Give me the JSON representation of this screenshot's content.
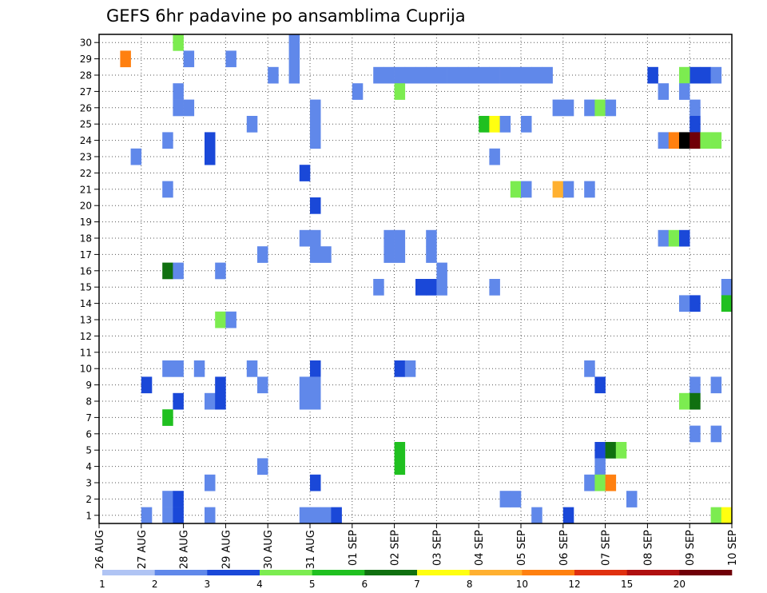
{
  "chart_data": {
    "type": "heatmap",
    "title": "GEFS 6hr padavine po ansamblima Cuprija",
    "xlabel": "",
    "ylabel": "",
    "x_ticks": [
      "26 AUG",
      "27 AUG",
      "28 AUG",
      "29 AUG",
      "30 AUG",
      "31 AUG",
      "01 SEP",
      "02 SEP",
      "03 SEP",
      "04 SEP",
      "05 SEP",
      "06 SEP",
      "07 SEP",
      "08 SEP",
      "09 SEP",
      "10 SEP"
    ],
    "y_ticks": [
      1,
      2,
      3,
      4,
      5,
      6,
      7,
      8,
      9,
      10,
      11,
      12,
      13,
      14,
      15,
      16,
      17,
      18,
      19,
      20,
      21,
      22,
      23,
      24,
      25,
      26,
      27,
      28,
      29,
      30
    ],
    "x_range": [
      0,
      60
    ],
    "y_range": [
      0.5,
      30.5
    ],
    "grid": true,
    "colorbar": {
      "levels": [
        "1",
        "2",
        "3",
        "4",
        "5",
        "6",
        "7",
        "8",
        "10",
        "12",
        "15",
        "20"
      ],
      "colors": [
        "#b0c4f4",
        "#6088ea",
        "#1a48d8",
        "#7cec50",
        "#20c020",
        "#107010",
        "#ffff10",
        "#ffb030",
        "#ff8010",
        "#e03010",
        "#b01010",
        "#700008"
      ]
    },
    "cells": [
      [
        7,
        30,
        3
      ],
      [
        2,
        29,
        8
      ],
      [
        8,
        29,
        1
      ],
      [
        12,
        29,
        1
      ],
      [
        18,
        30,
        1
      ],
      [
        18,
        29,
        1
      ],
      [
        18,
        28,
        1
      ],
      [
        16,
        28,
        1
      ],
      [
        27,
        28,
        1
      ],
      [
        26,
        28,
        1
      ],
      [
        28,
        28,
        1
      ],
      [
        36,
        28,
        1
      ],
      [
        35,
        28,
        1
      ],
      [
        33,
        28,
        1
      ],
      [
        31,
        28,
        1
      ],
      [
        29,
        28,
        1
      ],
      [
        30,
        28,
        1
      ],
      [
        42,
        28,
        1
      ],
      [
        41,
        28,
        1
      ],
      [
        40,
        28,
        1
      ],
      [
        39,
        28,
        1
      ],
      [
        38,
        28,
        1
      ],
      [
        37,
        28,
        1
      ],
      [
        34,
        28,
        1
      ],
      [
        32,
        28,
        1
      ],
      [
        52,
        28,
        2
      ],
      [
        56,
        28,
        2
      ],
      [
        55,
        28,
        3
      ],
      [
        57,
        28,
        2
      ],
      [
        58,
        28,
        1
      ],
      [
        7,
        27,
        1
      ],
      [
        24,
        27,
        1
      ],
      [
        28,
        27,
        3
      ],
      [
        53,
        27,
        1
      ],
      [
        55,
        27,
        1
      ],
      [
        7,
        26,
        1
      ],
      [
        8,
        26,
        1
      ],
      [
        20,
        26,
        1
      ],
      [
        43,
        26,
        1
      ],
      [
        44,
        26,
        1
      ],
      [
        46,
        26,
        1
      ],
      [
        47,
        26,
        3
      ],
      [
        48,
        26,
        1
      ],
      [
        56,
        26,
        1
      ],
      [
        14,
        25,
        1
      ],
      [
        20,
        25,
        1
      ],
      [
        36,
        25,
        4
      ],
      [
        37,
        25,
        6
      ],
      [
        38,
        25,
        1
      ],
      [
        40,
        25,
        1
      ],
      [
        56,
        25,
        2
      ],
      [
        6,
        24,
        1
      ],
      [
        10,
        24,
        2
      ],
      [
        20,
        24,
        1
      ],
      [
        53,
        24,
        1
      ],
      [
        54,
        24,
        8
      ],
      [
        55,
        24,
        12
      ],
      [
        56,
        24,
        11
      ],
      [
        57,
        24,
        3
      ],
      [
        58,
        24,
        3
      ],
      [
        3,
        23,
        1
      ],
      [
        10,
        23,
        2
      ],
      [
        37,
        23,
        1
      ],
      [
        19,
        22,
        2
      ],
      [
        6,
        21,
        1
      ],
      [
        39,
        21,
        3
      ],
      [
        40,
        21,
        1
      ],
      [
        43,
        21,
        7
      ],
      [
        44,
        21,
        1
      ],
      [
        46,
        21,
        1
      ],
      [
        20,
        20,
        2
      ],
      [
        19,
        18,
        1
      ],
      [
        20,
        18,
        1
      ],
      [
        27,
        18,
        1
      ],
      [
        28,
        18,
        1
      ],
      [
        31,
        18,
        1
      ],
      [
        53,
        18,
        1
      ],
      [
        54,
        18,
        3
      ],
      [
        55,
        18,
        2
      ],
      [
        15,
        17,
        1
      ],
      [
        20,
        17,
        1
      ],
      [
        21,
        17,
        1
      ],
      [
        27,
        17,
        1
      ],
      [
        28,
        17,
        1
      ],
      [
        31,
        17,
        1
      ],
      [
        6,
        16,
        5
      ],
      [
        7,
        16,
        1
      ],
      [
        11,
        16,
        1
      ],
      [
        32,
        16,
        1
      ],
      [
        26,
        15,
        1
      ],
      [
        30,
        15,
        2
      ],
      [
        31,
        15,
        2
      ],
      [
        32,
        15,
        1
      ],
      [
        37,
        15,
        1
      ],
      [
        59,
        15,
        1
      ],
      [
        55,
        14,
        1
      ],
      [
        56,
        14,
        2
      ],
      [
        59,
        14,
        4
      ],
      [
        11,
        13,
        3
      ],
      [
        12,
        13,
        1
      ],
      [
        6,
        10,
        1
      ],
      [
        7,
        10,
        1
      ],
      [
        9,
        10,
        1
      ],
      [
        14,
        10,
        1
      ],
      [
        20,
        10,
        2
      ],
      [
        28,
        10,
        2
      ],
      [
        29,
        10,
        1
      ],
      [
        46,
        10,
        1
      ],
      [
        4,
        9,
        2
      ],
      [
        11,
        9,
        2
      ],
      [
        15,
        9,
        1
      ],
      [
        19,
        9,
        1
      ],
      [
        20,
        9,
        1
      ],
      [
        47,
        9,
        2
      ],
      [
        56,
        9,
        1
      ],
      [
        58,
        9,
        1
      ],
      [
        7,
        8,
        2
      ],
      [
        10,
        8,
        1
      ],
      [
        11,
        8,
        2
      ],
      [
        19,
        8,
        1
      ],
      [
        20,
        8,
        1
      ],
      [
        55,
        8,
        3
      ],
      [
        56,
        8,
        5
      ],
      [
        6,
        7,
        4
      ],
      [
        56,
        6,
        1
      ],
      [
        58,
        6,
        1
      ],
      [
        28,
        5,
        4
      ],
      [
        47,
        5,
        2
      ],
      [
        48,
        5,
        5
      ],
      [
        49,
        5,
        3
      ],
      [
        15,
        4,
        1
      ],
      [
        28,
        4,
        4
      ],
      [
        47,
        4,
        1
      ],
      [
        10,
        3,
        1
      ],
      [
        20,
        3,
        2
      ],
      [
        46,
        3,
        1
      ],
      [
        47,
        3,
        3
      ],
      [
        48,
        3,
        8
      ],
      [
        6,
        2,
        1
      ],
      [
        7,
        2,
        2
      ],
      [
        38,
        2,
        1
      ],
      [
        39,
        2,
        1
      ],
      [
        50,
        2,
        1
      ],
      [
        4,
        1,
        1
      ],
      [
        6,
        1,
        1
      ],
      [
        7,
        1,
        2
      ],
      [
        10,
        1,
        1
      ],
      [
        19,
        1,
        1
      ],
      [
        20,
        1,
        1
      ],
      [
        21,
        1,
        1
      ],
      [
        22,
        1,
        2
      ],
      [
        41,
        1,
        1
      ],
      [
        44,
        1,
        2
      ],
      [
        58,
        1,
        3
      ],
      [
        59,
        1,
        6
      ]
    ]
  }
}
